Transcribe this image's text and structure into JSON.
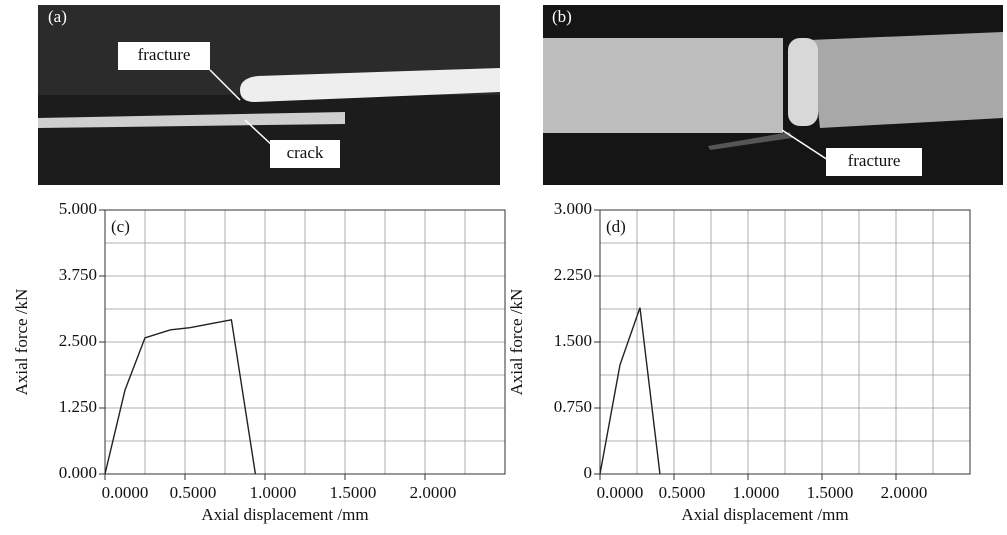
{
  "panels": [
    {
      "label": "(a)",
      "annotations": [
        "fracture",
        "crack"
      ]
    },
    {
      "label": "(b)",
      "annotations": [
        "fracture"
      ]
    }
  ],
  "chart_data": [
    {
      "type": "line",
      "label": "(c)",
      "x_label": "Axial displacement /mm",
      "y_label": "Axial force /kN",
      "x": [
        0,
        0.125,
        0.25,
        0.41,
        0.53,
        0.79,
        0.94
      ],
      "series": [
        {
          "color": "#222222",
          "values": [
            0,
            1.59,
            2.58,
            2.73,
            2.77,
            2.92,
            0
          ]
        }
      ],
      "xlim": [
        0,
        2.5
      ],
      "xticks": [
        {
          "value": 0,
          "label": "0.0000"
        },
        {
          "value": 0.5,
          "label": "0.5000"
        },
        {
          "value": 1,
          "label": "1.0000"
        },
        {
          "value": 1.5,
          "label": "1.5000"
        },
        {
          "value": 2,
          "label": "2.0000"
        }
      ],
      "ylim": [
        0,
        5
      ],
      "yticks": [
        {
          "value": 0,
          "label": "0.000"
        },
        {
          "value": 1.25,
          "label": "1.250"
        },
        {
          "value": 2.5,
          "label": "2.500"
        },
        {
          "value": 3.75,
          "label": "3.750"
        },
        {
          "value": 5,
          "label": "5.000"
        }
      ],
      "grid": true,
      "x_grid_step": 0.25,
      "y_grid_step": 0.625
    },
    {
      "type": "line",
      "label": "(d)",
      "x_label": "Axial displacement /mm",
      "y_label": "Axial force /kN",
      "x": [
        0,
        0.135,
        0.27,
        0.405
      ],
      "series": [
        {
          "color": "#222222",
          "values": [
            0,
            1.24,
            1.89,
            0
          ]
        }
      ],
      "xlim": [
        0,
        2.5
      ],
      "xticks": [
        {
          "value": 0,
          "label": "0.0000"
        },
        {
          "value": 0.5,
          "label": "0.5000"
        },
        {
          "value": 1,
          "label": "1.0000"
        },
        {
          "value": 1.5,
          "label": "1.5000"
        },
        {
          "value": 2,
          "label": "2.0000"
        }
      ],
      "ylim": [
        0,
        3
      ],
      "yticks": [
        0,
        {
          "value": 0.75,
          "label": "0.750"
        },
        {
          "value": 1.5,
          "label": "1.500"
        },
        {
          "value": 2.25,
          "label": "2.250"
        },
        {
          "value": 3,
          "label": "3.000"
        }
      ],
      "grid": true,
      "x_grid_step": 0.25,
      "y_grid_step": 0.375
    }
  ]
}
